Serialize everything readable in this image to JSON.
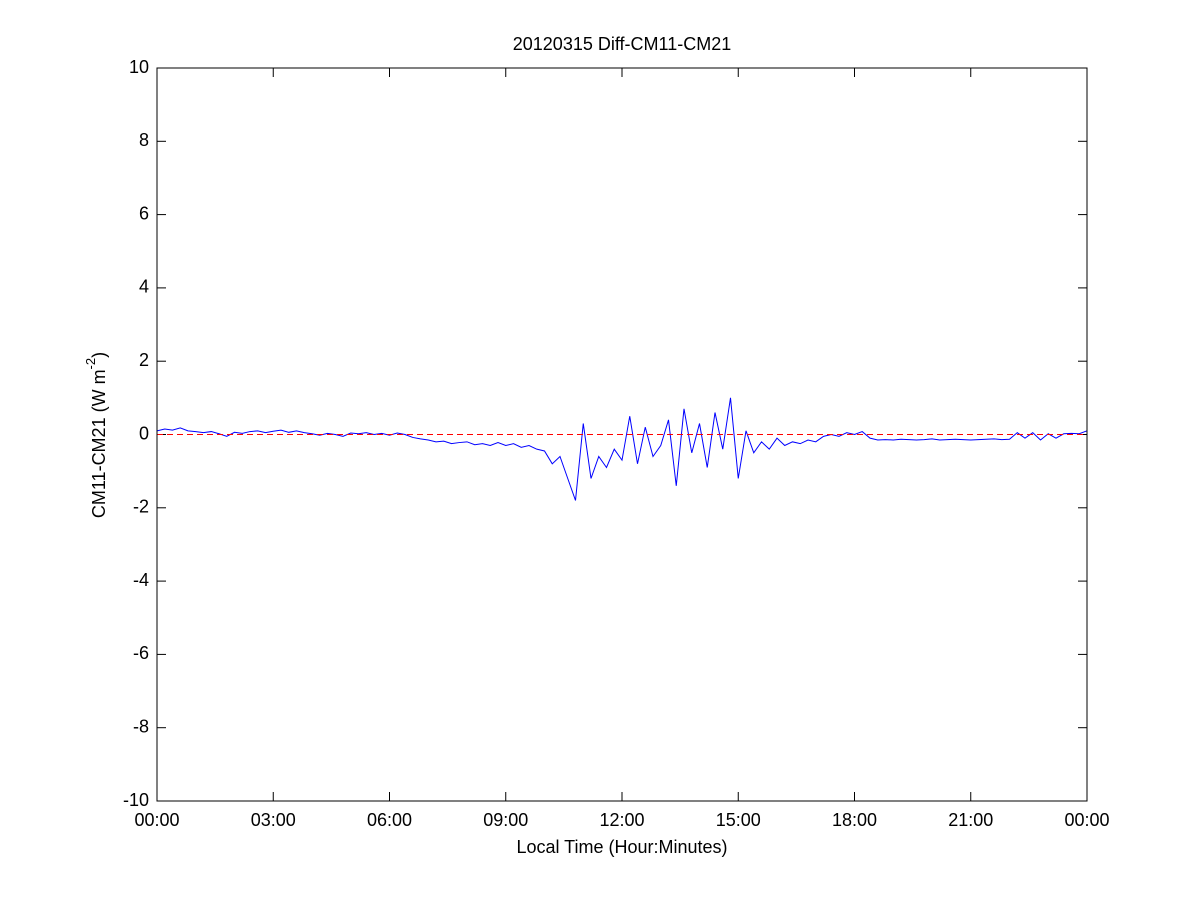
{
  "chart_data": {
    "type": "line",
    "title": "20120315 Diff-CM11-CM21",
    "x_label": "Local Time (Hour:Minutes)",
    "y_label": [
      "CM11-CM21 (W m",
      "-2",
      ")"
    ],
    "xlim": [
      0,
      24
    ],
    "xticks": [
      {
        "value": 0,
        "label": "00:00"
      },
      {
        "value": 3,
        "label": "03:00"
      },
      {
        "value": 6,
        "label": "06:00"
      },
      {
        "value": 9,
        "label": "09:00"
      },
      {
        "value": 12,
        "label": "12:00"
      },
      {
        "value": 15,
        "label": "15:00"
      },
      {
        "value": 18,
        "label": "18:00"
      },
      {
        "value": 21,
        "label": "21:00"
      },
      {
        "value": 24,
        "label": "00:00"
      }
    ],
    "ylim": [
      -10,
      10
    ],
    "yticks": [
      -10,
      -8,
      -6,
      -4,
      -2,
      0,
      2,
      4,
      6,
      8,
      10
    ],
    "reference_line": {
      "value": 0,
      "color": "#ff0000"
    },
    "x": [
      0,
      0.2,
      0.4,
      0.6,
      0.8,
      1,
      1.2,
      1.4,
      1.6,
      1.8,
      2,
      2.2,
      2.4,
      2.6,
      2.8,
      3,
      3.2,
      3.4,
      3.6,
      3.8,
      4,
      4.2,
      4.4,
      4.6,
      4.8,
      5,
      5.2,
      5.4,
      5.6,
      5.8,
      6,
      6.2,
      6.4,
      6.6,
      6.8,
      7,
      7.2,
      7.4,
      7.6,
      7.8,
      8,
      8.2,
      8.4,
      8.6,
      8.8,
      9,
      9.2,
      9.4,
      9.6,
      9.8,
      10,
      10.2,
      10.4,
      10.6,
      10.8,
      11,
      11.2,
      11.4,
      11.6,
      11.8,
      12,
      12.2,
      12.4,
      12.6,
      12.8,
      13,
      13.2,
      13.4,
      13.6,
      13.8,
      14,
      14.2,
      14.4,
      14.6,
      14.8,
      15,
      15.2,
      15.4,
      15.6,
      15.8,
      16,
      16.2,
      16.4,
      16.6,
      16.8,
      17,
      17.2,
      17.4,
      17.6,
      17.8,
      18,
      18.2,
      18.4,
      18.6,
      18.8,
      19,
      19.2,
      19.4,
      19.6,
      19.8,
      20,
      20.2,
      20.4,
      20.6,
      20.8,
      21,
      21.2,
      21.4,
      21.6,
      21.8,
      22,
      22.2,
      22.4,
      22.6,
      22.8,
      23,
      23.2,
      23.4,
      23.6,
      23.8,
      24
    ],
    "series": [
      {
        "color": "#0000ff",
        "values": [
          0.1,
          0.15,
          0.12,
          0.18,
          0.1,
          0.08,
          0.05,
          0.08,
          0.02,
          -0.05,
          0.06,
          0.03,
          0.08,
          0.1,
          0.05,
          0.09,
          0.12,
          0.06,
          0.1,
          0.05,
          0.02,
          -0.02,
          0.03,
          0,
          -0.05,
          0.04,
          0.02,
          0.05,
          0,
          0.03,
          -0.02,
          0.04,
          0,
          -0.08,
          -0.12,
          -0.15,
          -0.2,
          -0.18,
          -0.25,
          -0.22,
          -0.2,
          -0.28,
          -0.25,
          -0.3,
          -0.22,
          -0.3,
          -0.25,
          -0.35,
          -0.3,
          -0.4,
          -0.45,
          -0.8,
          -0.6,
          -1.2,
          -1.8,
          0.3,
          -1.2,
          -0.6,
          -0.9,
          -0.4,
          -0.7,
          0.5,
          -0.8,
          0.2,
          -0.6,
          -0.3,
          0.4,
          -1.4,
          0.7,
          -0.5,
          0.3,
          -0.9,
          0.6,
          -0.4,
          1,
          -1.2,
          0.1,
          -0.5,
          -0.2,
          -0.4,
          -0.1,
          -0.3,
          -0.2,
          -0.25,
          -0.15,
          -0.2,
          -0.05,
          0,
          -0.05,
          0.05,
          0,
          0.08,
          -0.1,
          -0.15,
          -0.14,
          -0.15,
          -0.13,
          -0.14,
          -0.15,
          -0.14,
          -0.12,
          -0.15,
          -0.14,
          -0.13,
          -0.14,
          -0.15,
          -0.14,
          -0.13,
          -0.12,
          -0.14,
          -0.13,
          0.05,
          -0.1,
          0.05,
          -0.15,
          0.02,
          -0.1,
          0.02,
          0.03,
          0.02,
          0.1
        ]
      }
    ]
  }
}
